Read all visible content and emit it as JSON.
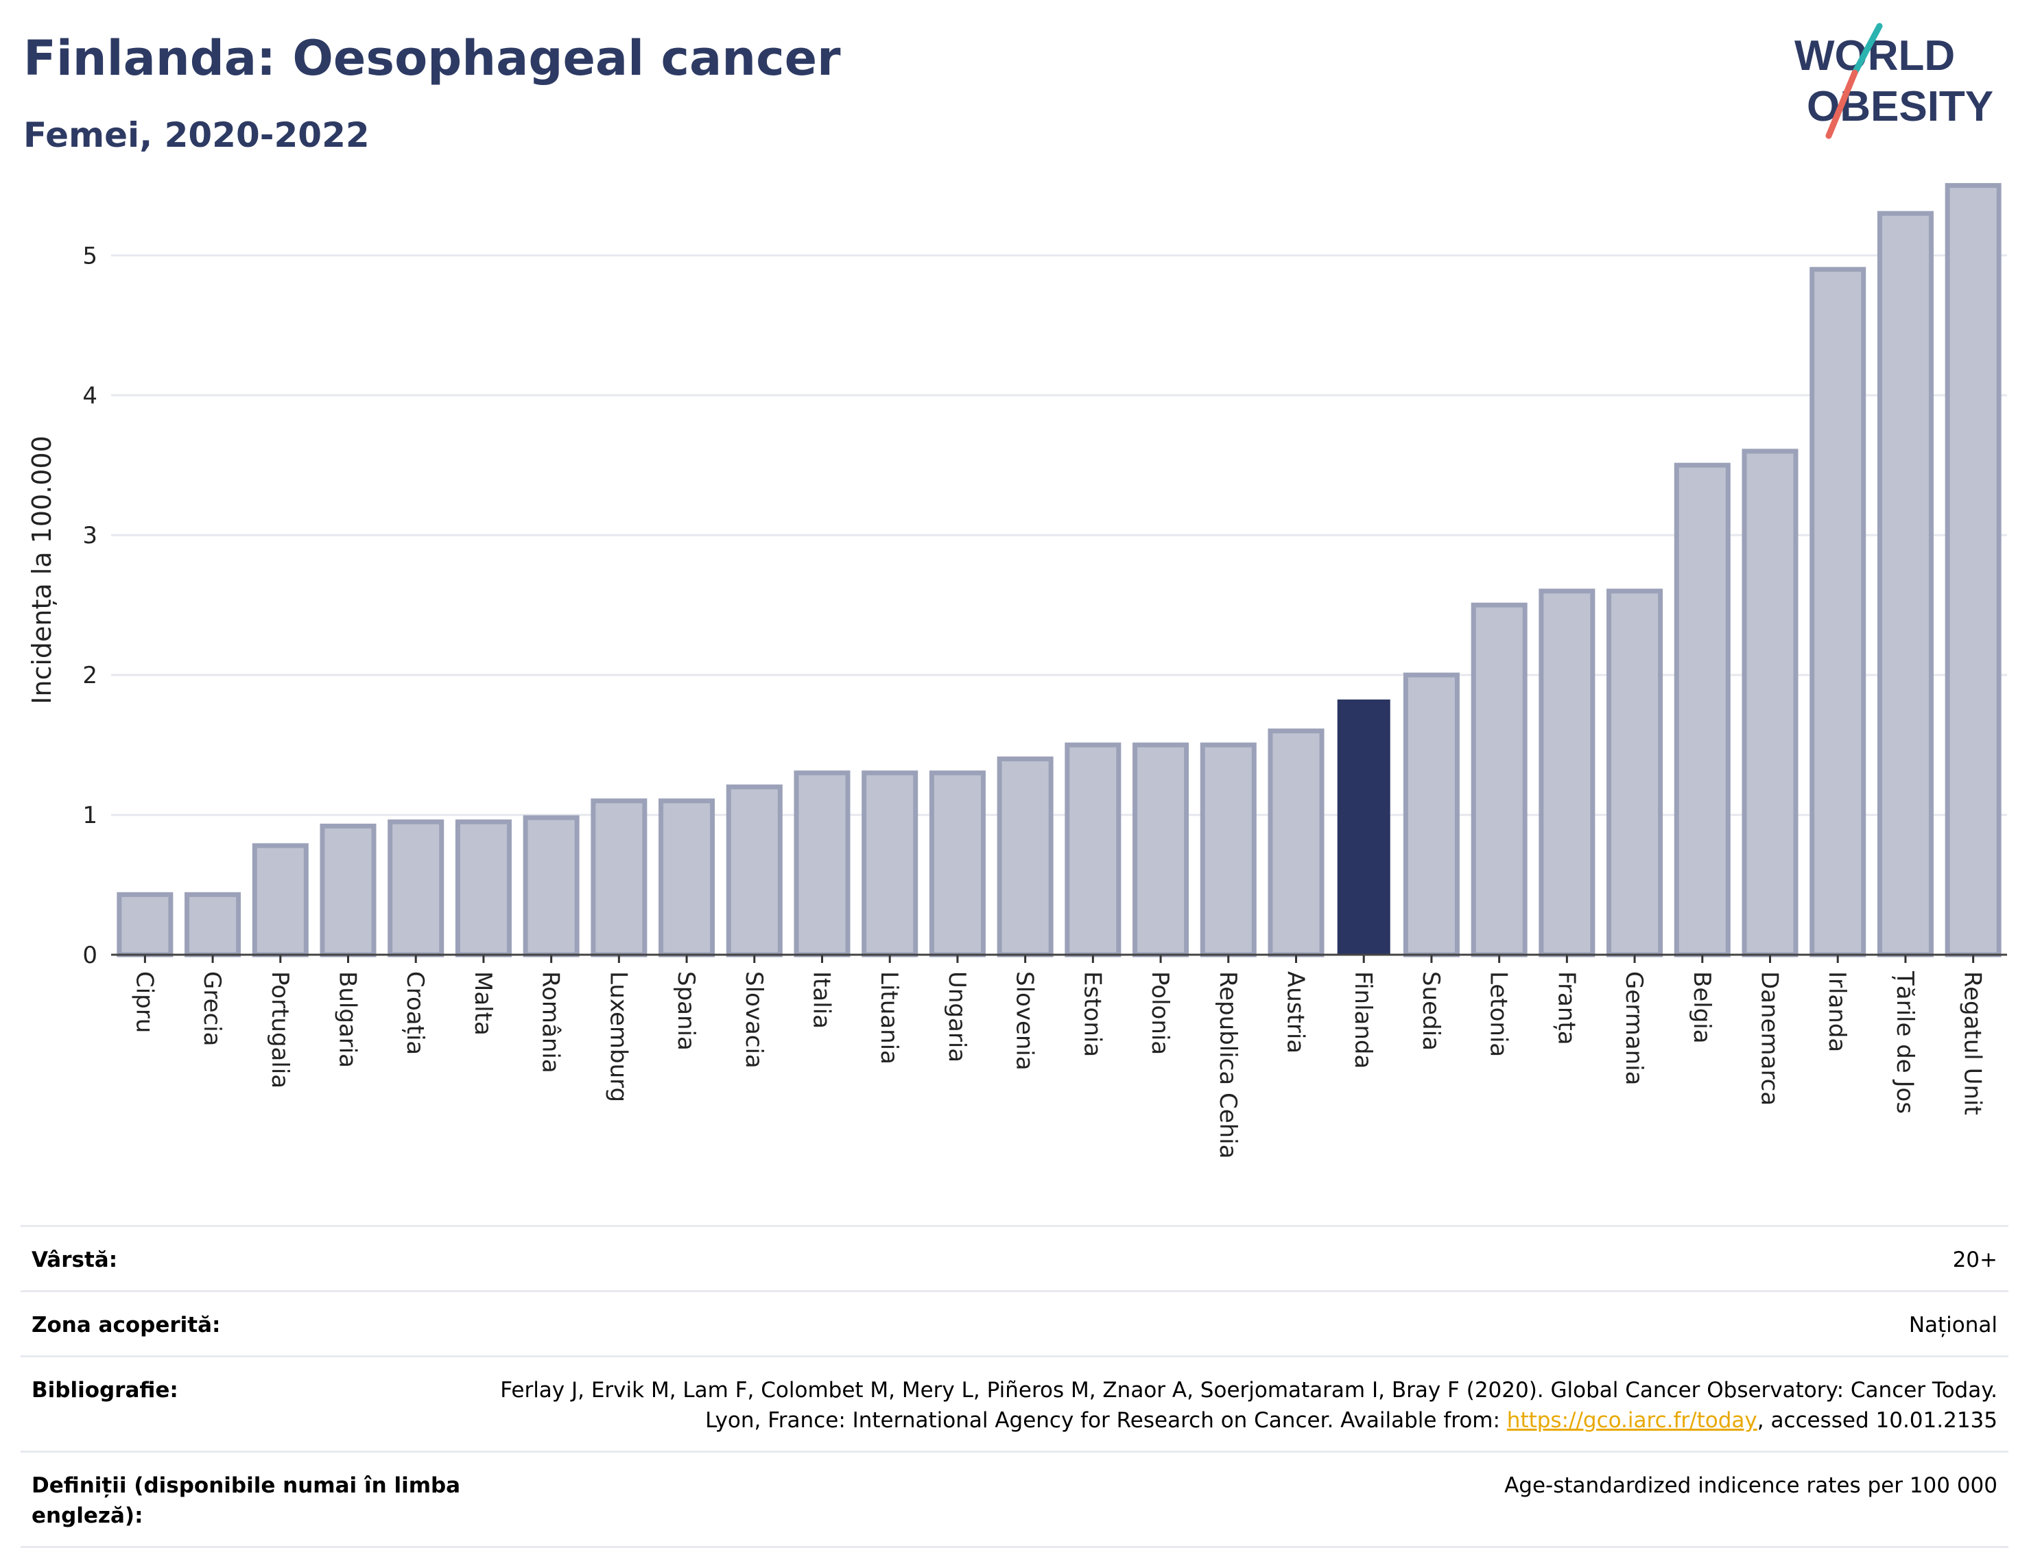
{
  "header": {
    "title": "Finlanda: Oesophageal cancer",
    "subtitle": "Femei, 2020-2022"
  },
  "logo": {
    "line1": "WORLD",
    "line2": "OBESITY"
  },
  "colors": {
    "bar_fill": "#bfc3d1",
    "bar_stroke": "#9ba1b8",
    "highlight": "#2a3561",
    "title": "#2d3a63",
    "grid": "#e6e8ee",
    "link": "#e8a800"
  },
  "chart_data": {
    "type": "bar",
    "ylabel": "Incidența la 100.000",
    "ylim": [
      0,
      5.6
    ],
    "yticks": [
      0,
      1,
      2,
      3,
      4,
      5
    ],
    "highlight": "Finlanda",
    "categories": [
      "Cipru",
      "Grecia",
      "Portugalia",
      "Bulgaria",
      "Croația",
      "Malta",
      "România",
      "Luxemburg",
      "Spania",
      "Slovacia",
      "Italia",
      "Lituania",
      "Ungaria",
      "Slovenia",
      "Estonia",
      "Polonia",
      "Republica Cehia",
      "Austria",
      "Finlanda",
      "Suedia",
      "Letonia",
      "Franța",
      "Germania",
      "Belgia",
      "Danemarca",
      "Irlanda",
      "Țările de Jos",
      "Regatul Unit"
    ],
    "values": [
      0.43,
      0.43,
      0.78,
      0.92,
      0.95,
      0.95,
      0.98,
      1.1,
      1.1,
      1.2,
      1.3,
      1.3,
      1.3,
      1.4,
      1.5,
      1.5,
      1.5,
      1.6,
      1.82,
      2.0,
      2.5,
      2.6,
      2.6,
      3.5,
      3.6,
      4.9,
      5.3,
      5.5
    ]
  },
  "meta": {
    "age_label": "Vârstă:",
    "age_value": "20+",
    "area_label": "Zona acoperită:",
    "area_value": "Național",
    "bib_label": "Bibliografie:",
    "bib_text_1": "Ferlay J, Ervik M, Lam F, Colombet M, Mery L, Piñeros M, Znaor A, Soerjomataram I, Bray F (2020). Global Cancer Observatory: Cancer Today. Lyon, France: International Agency for Research on Cancer. Available from: ",
    "bib_link": "https://gco.iarc.fr/today",
    "bib_text_2": ", accessed 10.01.2135",
    "def_label": "Definiții (disponibile numai în limba engleză):",
    "def_value": "Age-standardized indicence rates per 100 000"
  }
}
